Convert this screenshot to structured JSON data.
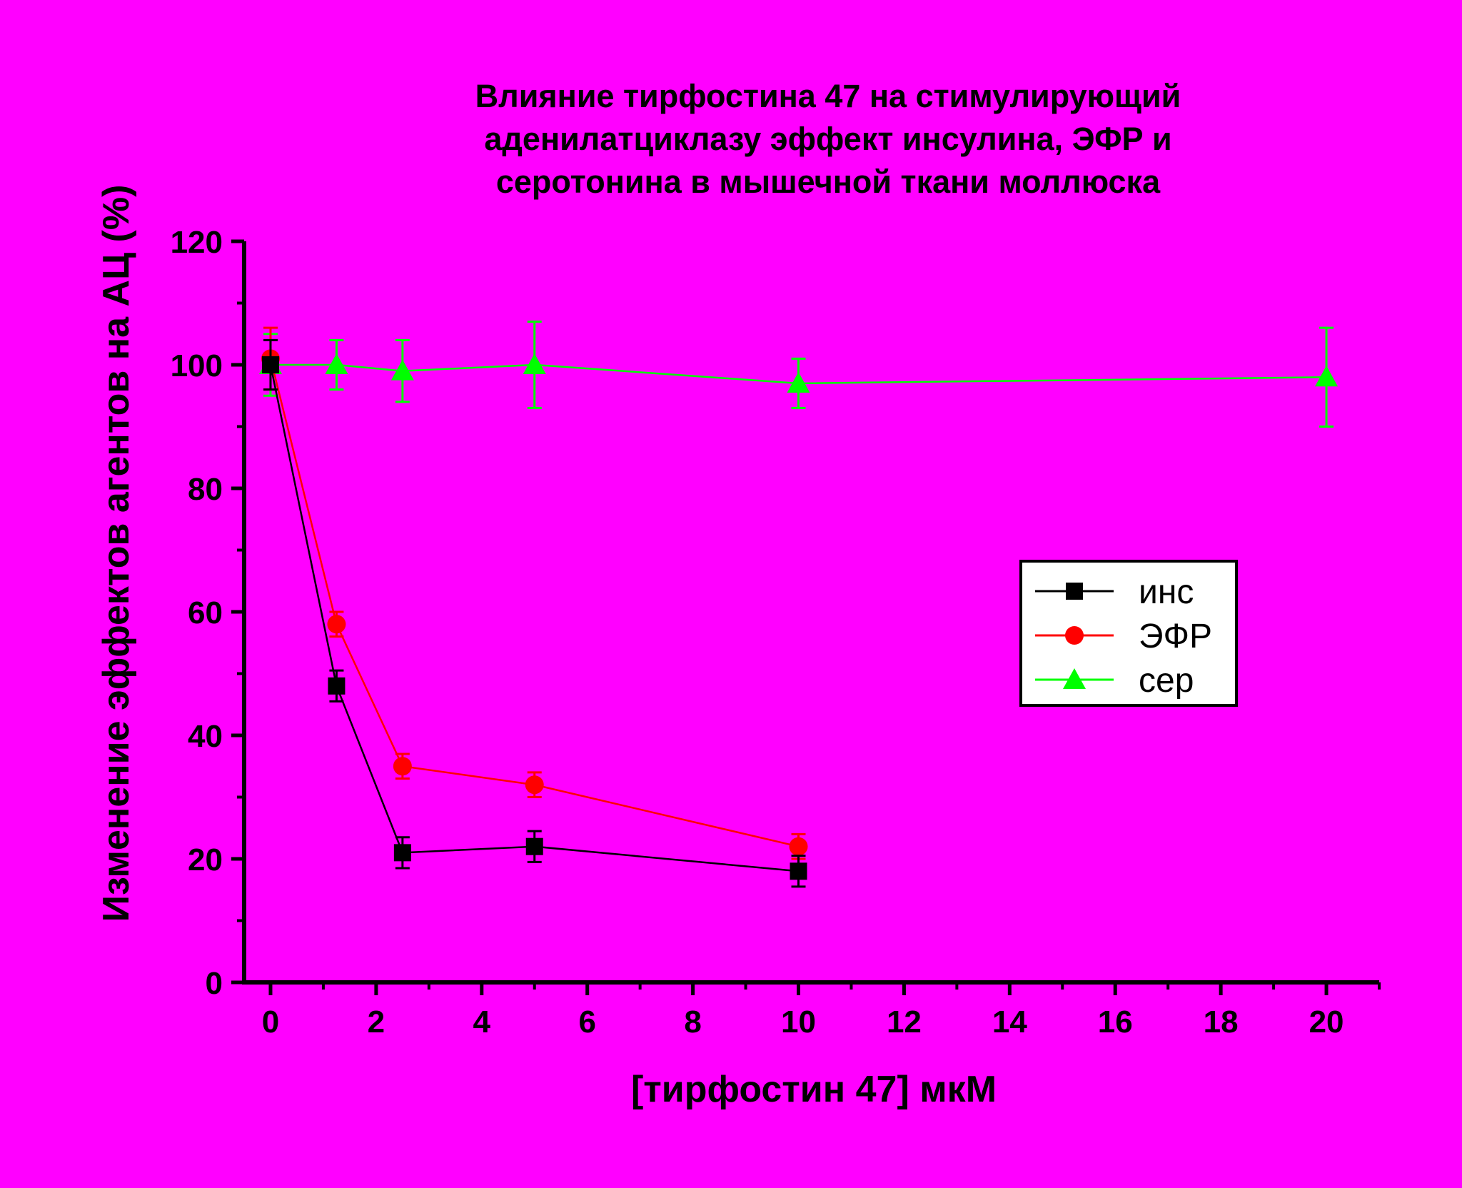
{
  "colors": {
    "background": "#ff00ff",
    "ins": "#000000",
    "efr": "#ff0000",
    "ser": "#00ff00"
  },
  "chart_data": {
    "type": "line",
    "title": [
      "Влияние тирфостина 47 на стимулирующий",
      "аденилатциклазу эффект инсулина, ЭФР и",
      "серотонина в мышечной ткани моллюска"
    ],
    "xlabel": "[тирфостин 47] мкМ",
    "ylabel": "Изменение эффектов агентов на АЦ (%)",
    "xlim": [
      -0.5,
      21
    ],
    "ylim": [
      0,
      120
    ],
    "x_ticks": [
      "0",
      "2",
      "4",
      "6",
      "8",
      "10",
      "12",
      "14",
      "16",
      "18",
      "20"
    ],
    "y_ticks": [
      "0",
      "20",
      "40",
      "60",
      "80",
      "100",
      "120"
    ],
    "grid": false,
    "legend_position": "right-middle",
    "series": [
      {
        "name": "инс",
        "marker": "square",
        "x": [
          0,
          1.25,
          2.5,
          5,
          10
        ],
        "y": [
          100,
          48,
          21,
          22,
          18
        ],
        "err": [
          4,
          2.5,
          2.5,
          2.5,
          2.5
        ]
      },
      {
        "name": "ЭФР",
        "marker": "circle",
        "x": [
          0,
          1.25,
          2.5,
          5,
          10
        ],
        "y": [
          101,
          58,
          35,
          32,
          22
        ],
        "err": [
          5,
          2,
          2,
          2,
          2
        ]
      },
      {
        "name": "сер",
        "marker": "triangle",
        "x": [
          0,
          1.25,
          2.5,
          5,
          10,
          20
        ],
        "y": [
          100,
          100,
          99,
          100,
          97,
          98
        ],
        "err": [
          5,
          4,
          5,
          7,
          4,
          8
        ]
      }
    ]
  }
}
